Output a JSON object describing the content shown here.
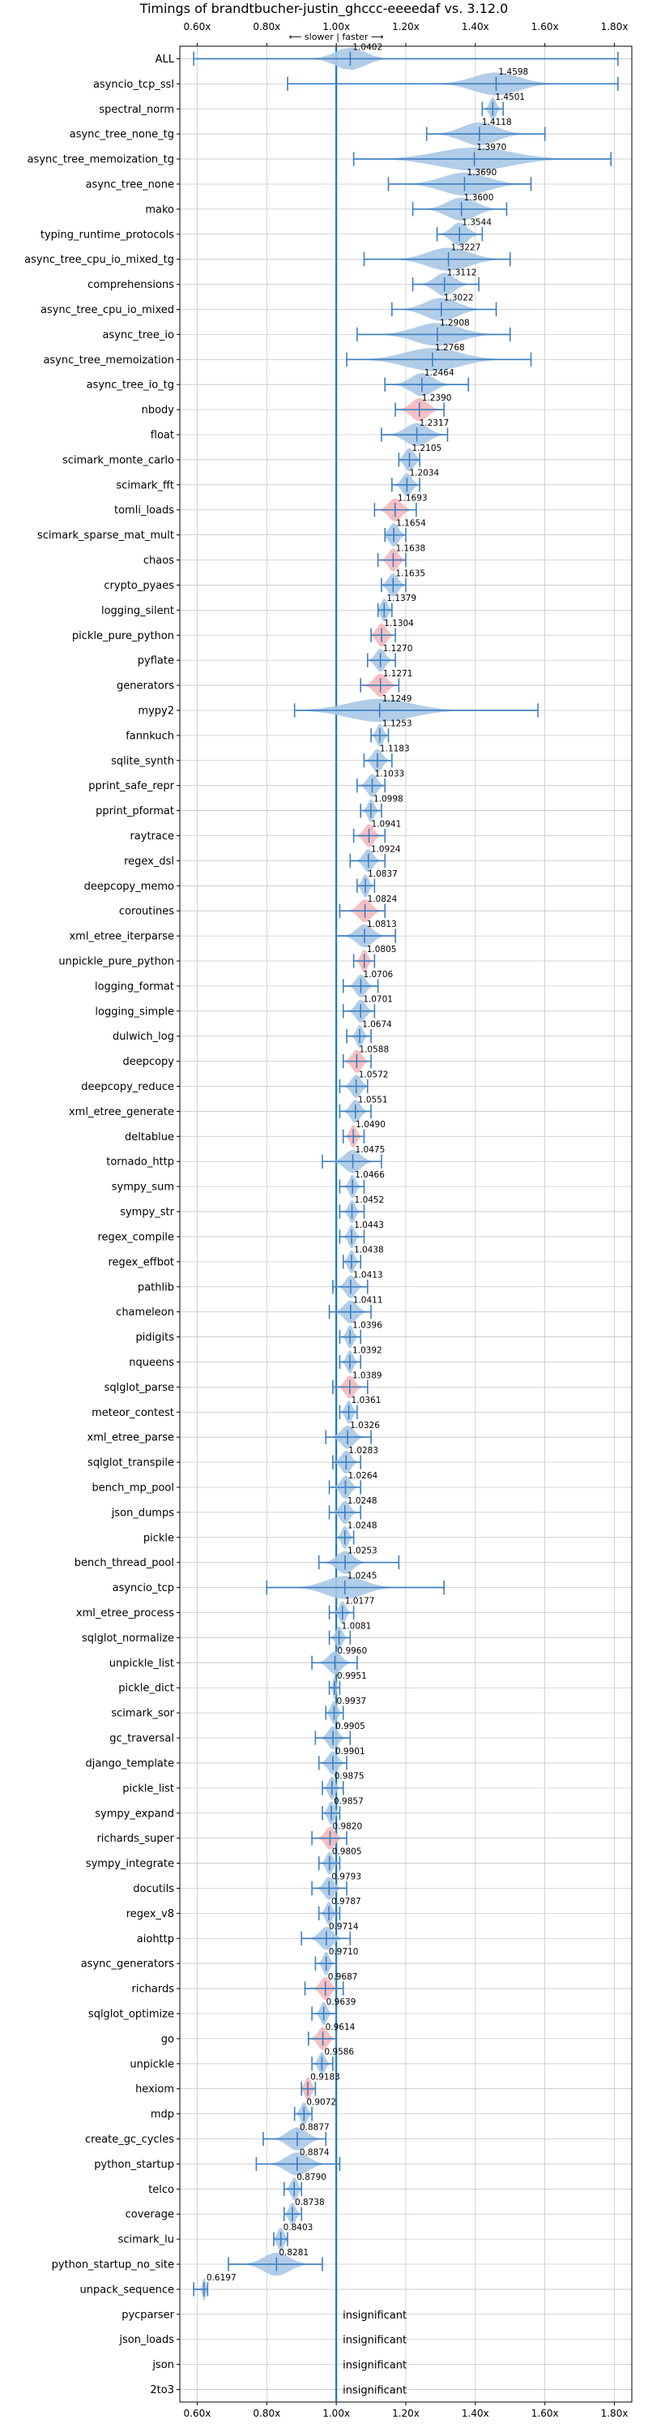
{
  "chart_data": {
    "type": "violin",
    "title": "Timings of brandtbucher-justin_ghccc-eeeedaf vs. 3.12.0",
    "direction_note": "⟵ slower | faster ⟶",
    "xlim": [
      0.55,
      1.85
    ],
    "xticks": [
      "0.60x",
      "0.80x",
      "1.00x",
      "1.20x",
      "1.40x",
      "1.60x",
      "1.80x"
    ],
    "xtick_values": [
      0.6,
      0.8,
      1.0,
      1.2,
      1.4,
      1.6,
      1.8
    ],
    "reference_line": 1.0,
    "grid": true,
    "insignificant_label": "insignificant",
    "colors": {
      "violin": "#a9c8e6",
      "violin_highlight": "#f4b8bd",
      "whisker": "#3d7fc0",
      "reference": "#1f77b4",
      "grid": "#c8c8c8"
    },
    "benchmarks": [
      {
        "name": "ALL",
        "value": 1.0402,
        "min": 0.59,
        "max": 1.81,
        "spread": 0.09,
        "color": "blue"
      },
      {
        "name": "asyncio_tcp_ssl",
        "value": 1.4598,
        "min": 0.86,
        "max": 1.81,
        "spread": 0.14,
        "color": "blue"
      },
      {
        "name": "spectral_norm",
        "value": 1.4501,
        "min": 1.42,
        "max": 1.48,
        "spread": 0.02,
        "color": "blue"
      },
      {
        "name": "async_tree_none_tg",
        "value": 1.4118,
        "min": 1.26,
        "max": 1.6,
        "spread": 0.11,
        "color": "blue"
      },
      {
        "name": "async_tree_memoization_tg",
        "value": 1.397,
        "min": 1.05,
        "max": 1.79,
        "spread": 0.23,
        "color": "blue"
      },
      {
        "name": "async_tree_none",
        "value": 1.369,
        "min": 1.15,
        "max": 1.56,
        "spread": 0.14,
        "color": "blue"
      },
      {
        "name": "mako",
        "value": 1.36,
        "min": 1.22,
        "max": 1.49,
        "spread": 0.09,
        "color": "blue"
      },
      {
        "name": "typing_runtime_protocols",
        "value": 1.3544,
        "min": 1.29,
        "max": 1.42,
        "spread": 0.05,
        "color": "blue"
      },
      {
        "name": "async_tree_cpu_io_mixed_tg",
        "value": 1.3227,
        "min": 1.08,
        "max": 1.5,
        "spread": 0.13,
        "color": "blue"
      },
      {
        "name": "comprehensions",
        "value": 1.3112,
        "min": 1.22,
        "max": 1.41,
        "spread": 0.06,
        "color": "blue"
      },
      {
        "name": "async_tree_cpu_io_mixed",
        "value": 1.3022,
        "min": 1.16,
        "max": 1.46,
        "spread": 0.1,
        "color": "blue"
      },
      {
        "name": "async_tree_io",
        "value": 1.2908,
        "min": 1.06,
        "max": 1.5,
        "spread": 0.14,
        "color": "blue"
      },
      {
        "name": "async_tree_memoization",
        "value": 1.2768,
        "min": 1.03,
        "max": 1.56,
        "spread": 0.17,
        "color": "blue"
      },
      {
        "name": "async_tree_io_tg",
        "value": 1.2464,
        "min": 1.14,
        "max": 1.38,
        "spread": 0.07,
        "color": "blue"
      },
      {
        "name": "nbody",
        "value": 1.239,
        "min": 1.17,
        "max": 1.31,
        "spread": 0.05,
        "color": "red"
      },
      {
        "name": "float",
        "value": 1.2317,
        "min": 1.13,
        "max": 1.32,
        "spread": 0.07,
        "color": "blue"
      },
      {
        "name": "scimark_monte_carlo",
        "value": 1.2105,
        "min": 1.18,
        "max": 1.24,
        "spread": 0.03,
        "color": "blue"
      },
      {
        "name": "scimark_fft",
        "value": 1.2034,
        "min": 1.16,
        "max": 1.24,
        "spread": 0.03,
        "color": "blue"
      },
      {
        "name": "tomli_loads",
        "value": 1.1693,
        "min": 1.11,
        "max": 1.23,
        "spread": 0.04,
        "color": "red"
      },
      {
        "name": "scimark_sparse_mat_mult",
        "value": 1.1654,
        "min": 1.14,
        "max": 1.2,
        "spread": 0.03,
        "color": "blue"
      },
      {
        "name": "chaos",
        "value": 1.1638,
        "min": 1.12,
        "max": 1.2,
        "spread": 0.03,
        "color": "red"
      },
      {
        "name": "crypto_pyaes",
        "value": 1.1635,
        "min": 1.13,
        "max": 1.2,
        "spread": 0.03,
        "color": "blue"
      },
      {
        "name": "logging_silent",
        "value": 1.1379,
        "min": 1.12,
        "max": 1.16,
        "spread": 0.02,
        "color": "blue"
      },
      {
        "name": "pickle_pure_python",
        "value": 1.1304,
        "min": 1.1,
        "max": 1.17,
        "spread": 0.03,
        "color": "red"
      },
      {
        "name": "pyflate",
        "value": 1.127,
        "min": 1.09,
        "max": 1.17,
        "spread": 0.03,
        "color": "blue"
      },
      {
        "name": "generators",
        "value": 1.1271,
        "min": 1.07,
        "max": 1.18,
        "spread": 0.04,
        "color": "red"
      },
      {
        "name": "mypy2",
        "value": 1.1249,
        "min": 0.88,
        "max": 1.58,
        "spread": 0.2,
        "color": "blue"
      },
      {
        "name": "fannkuch",
        "value": 1.1253,
        "min": 1.1,
        "max": 1.15,
        "spread": 0.02,
        "color": "blue"
      },
      {
        "name": "sqlite_synth",
        "value": 1.1183,
        "min": 1.08,
        "max": 1.16,
        "spread": 0.03,
        "color": "blue"
      },
      {
        "name": "pprint_safe_repr",
        "value": 1.1033,
        "min": 1.06,
        "max": 1.14,
        "spread": 0.03,
        "color": "blue"
      },
      {
        "name": "pprint_pformat",
        "value": 1.0998,
        "min": 1.07,
        "max": 1.13,
        "spread": 0.02,
        "color": "blue"
      },
      {
        "name": "raytrace",
        "value": 1.0941,
        "min": 1.05,
        "max": 1.14,
        "spread": 0.03,
        "color": "red"
      },
      {
        "name": "regex_dsl",
        "value": 1.0924,
        "min": 1.04,
        "max": 1.14,
        "spread": 0.03,
        "color": "blue"
      },
      {
        "name": "deepcopy_memo",
        "value": 1.0837,
        "min": 1.06,
        "max": 1.11,
        "spread": 0.02,
        "color": "blue"
      },
      {
        "name": "coroutines",
        "value": 1.0824,
        "min": 1.01,
        "max": 1.14,
        "spread": 0.04,
        "color": "red"
      },
      {
        "name": "xml_etree_iterparse",
        "value": 1.0813,
        "min": 1.0,
        "max": 1.17,
        "spread": 0.05,
        "color": "blue"
      },
      {
        "name": "unpickle_pure_python",
        "value": 1.0805,
        "min": 1.05,
        "max": 1.11,
        "spread": 0.02,
        "color": "red"
      },
      {
        "name": "logging_format",
        "value": 1.0706,
        "min": 1.02,
        "max": 1.12,
        "spread": 0.03,
        "color": "blue"
      },
      {
        "name": "logging_simple",
        "value": 1.0701,
        "min": 1.02,
        "max": 1.11,
        "spread": 0.03,
        "color": "blue"
      },
      {
        "name": "dulwich_log",
        "value": 1.0674,
        "min": 1.03,
        "max": 1.1,
        "spread": 0.02,
        "color": "blue"
      },
      {
        "name": "deepcopy",
        "value": 1.0588,
        "min": 1.02,
        "max": 1.1,
        "spread": 0.03,
        "color": "red"
      },
      {
        "name": "deepcopy_reduce",
        "value": 1.0572,
        "min": 1.01,
        "max": 1.09,
        "spread": 0.03,
        "color": "blue"
      },
      {
        "name": "xml_etree_generate",
        "value": 1.0551,
        "min": 1.01,
        "max": 1.1,
        "spread": 0.03,
        "color": "blue"
      },
      {
        "name": "deltablue",
        "value": 1.049,
        "min": 1.02,
        "max": 1.08,
        "spread": 0.02,
        "color": "red"
      },
      {
        "name": "tornado_http",
        "value": 1.0475,
        "min": 0.96,
        "max": 1.13,
        "spread": 0.05,
        "color": "blue"
      },
      {
        "name": "sympy_sum",
        "value": 1.0466,
        "min": 1.01,
        "max": 1.08,
        "spread": 0.02,
        "color": "blue"
      },
      {
        "name": "sympy_str",
        "value": 1.0452,
        "min": 1.01,
        "max": 1.08,
        "spread": 0.02,
        "color": "blue"
      },
      {
        "name": "regex_compile",
        "value": 1.0443,
        "min": 1.01,
        "max": 1.08,
        "spread": 0.02,
        "color": "blue"
      },
      {
        "name": "regex_effbot",
        "value": 1.0438,
        "min": 1.02,
        "max": 1.07,
        "spread": 0.02,
        "color": "blue"
      },
      {
        "name": "pathlib",
        "value": 1.0413,
        "min": 0.99,
        "max": 1.09,
        "spread": 0.03,
        "color": "blue"
      },
      {
        "name": "chameleon",
        "value": 1.0411,
        "min": 0.98,
        "max": 1.1,
        "spread": 0.04,
        "color": "blue"
      },
      {
        "name": "pidigits",
        "value": 1.0396,
        "min": 1.01,
        "max": 1.07,
        "spread": 0.02,
        "color": "blue"
      },
      {
        "name": "nqueens",
        "value": 1.0392,
        "min": 1.01,
        "max": 1.07,
        "spread": 0.02,
        "color": "blue"
      },
      {
        "name": "sqlglot_parse",
        "value": 1.0389,
        "min": 0.99,
        "max": 1.09,
        "spread": 0.03,
        "color": "red"
      },
      {
        "name": "meteor_contest",
        "value": 1.0361,
        "min": 1.01,
        "max": 1.06,
        "spread": 0.02,
        "color": "blue"
      },
      {
        "name": "xml_etree_parse",
        "value": 1.0326,
        "min": 0.97,
        "max": 1.1,
        "spread": 0.04,
        "color": "blue"
      },
      {
        "name": "sqlglot_transpile",
        "value": 1.0283,
        "min": 0.99,
        "max": 1.07,
        "spread": 0.03,
        "color": "blue"
      },
      {
        "name": "bench_mp_pool",
        "value": 1.0264,
        "min": 0.98,
        "max": 1.07,
        "spread": 0.03,
        "color": "blue"
      },
      {
        "name": "json_dumps",
        "value": 1.0248,
        "min": 0.98,
        "max": 1.07,
        "spread": 0.03,
        "color": "blue"
      },
      {
        "name": "pickle",
        "value": 1.0248,
        "min": 1.0,
        "max": 1.05,
        "spread": 0.02,
        "color": "blue"
      },
      {
        "name": "bench_thread_pool",
        "value": 1.0253,
        "min": 0.95,
        "max": 1.18,
        "spread": 0.05,
        "color": "blue"
      },
      {
        "name": "asyncio_tcp",
        "value": 1.0245,
        "min": 0.8,
        "max": 1.31,
        "spread": 0.12,
        "color": "blue"
      },
      {
        "name": "xml_etree_process",
        "value": 1.0177,
        "min": 0.98,
        "max": 1.05,
        "spread": 0.02,
        "color": "blue"
      },
      {
        "name": "sqlglot_normalize",
        "value": 1.0081,
        "min": 0.98,
        "max": 1.04,
        "spread": 0.02,
        "color": "blue"
      },
      {
        "name": "unpickle_list",
        "value": 0.996,
        "min": 0.93,
        "max": 1.06,
        "spread": 0.04,
        "color": "blue"
      },
      {
        "name": "pickle_dict",
        "value": 0.9951,
        "min": 0.98,
        "max": 1.01,
        "spread": 0.01,
        "color": "blue"
      },
      {
        "name": "scimark_sor",
        "value": 0.9937,
        "min": 0.97,
        "max": 1.02,
        "spread": 0.02,
        "color": "blue"
      },
      {
        "name": "gc_traversal",
        "value": 0.9905,
        "min": 0.94,
        "max": 1.04,
        "spread": 0.03,
        "color": "blue"
      },
      {
        "name": "django_template",
        "value": 0.9901,
        "min": 0.95,
        "max": 1.03,
        "spread": 0.03,
        "color": "blue"
      },
      {
        "name": "pickle_list",
        "value": 0.9875,
        "min": 0.96,
        "max": 1.02,
        "spread": 0.02,
        "color": "blue"
      },
      {
        "name": "sympy_expand",
        "value": 0.9857,
        "min": 0.96,
        "max": 1.01,
        "spread": 0.02,
        "color": "blue"
      },
      {
        "name": "richards_super",
        "value": 0.982,
        "min": 0.93,
        "max": 1.03,
        "spread": 0.03,
        "color": "red"
      },
      {
        "name": "sympy_integrate",
        "value": 0.9805,
        "min": 0.95,
        "max": 1.01,
        "spread": 0.02,
        "color": "blue"
      },
      {
        "name": "docutils",
        "value": 0.9793,
        "min": 0.93,
        "max": 1.03,
        "spread": 0.03,
        "color": "blue"
      },
      {
        "name": "regex_v8",
        "value": 0.9787,
        "min": 0.95,
        "max": 1.01,
        "spread": 0.02,
        "color": "blue"
      },
      {
        "name": "aiohttp",
        "value": 0.9714,
        "min": 0.9,
        "max": 1.04,
        "spread": 0.04,
        "color": "blue"
      },
      {
        "name": "async_generators",
        "value": 0.971,
        "min": 0.94,
        "max": 1.0,
        "spread": 0.02,
        "color": "blue"
      },
      {
        "name": "richards",
        "value": 0.9687,
        "min": 0.91,
        "max": 1.02,
        "spread": 0.03,
        "color": "red"
      },
      {
        "name": "sqlglot_optimize",
        "value": 0.9639,
        "min": 0.93,
        "max": 1.0,
        "spread": 0.02,
        "color": "blue"
      },
      {
        "name": "go",
        "value": 0.9614,
        "min": 0.92,
        "max": 1.0,
        "spread": 0.03,
        "color": "red"
      },
      {
        "name": "unpickle",
        "value": 0.9586,
        "min": 0.93,
        "max": 0.99,
        "spread": 0.02,
        "color": "blue"
      },
      {
        "name": "hexiom",
        "value": 0.9183,
        "min": 0.9,
        "max": 0.94,
        "spread": 0.02,
        "color": "red"
      },
      {
        "name": "mdp",
        "value": 0.9072,
        "min": 0.88,
        "max": 0.93,
        "spread": 0.02,
        "color": "blue"
      },
      {
        "name": "create_gc_cycles",
        "value": 0.8877,
        "min": 0.79,
        "max": 0.97,
        "spread": 0.06,
        "color": "blue"
      },
      {
        "name": "python_startup",
        "value": 0.8874,
        "min": 0.77,
        "max": 1.01,
        "spread": 0.07,
        "color": "blue"
      },
      {
        "name": "telco",
        "value": 0.879,
        "min": 0.85,
        "max": 0.9,
        "spread": 0.02,
        "color": "blue"
      },
      {
        "name": "coverage",
        "value": 0.8738,
        "min": 0.85,
        "max": 0.9,
        "spread": 0.02,
        "color": "blue"
      },
      {
        "name": "scimark_lu",
        "value": 0.8403,
        "min": 0.82,
        "max": 0.86,
        "spread": 0.02,
        "color": "blue"
      },
      {
        "name": "python_startup_no_site",
        "value": 0.8281,
        "min": 0.69,
        "max": 0.96,
        "spread": 0.08,
        "color": "blue"
      },
      {
        "name": "unpack_sequence",
        "value": 0.6197,
        "min": 0.59,
        "max": 0.63,
        "spread": 0.01,
        "color": "blue"
      },
      {
        "name": "pycparser",
        "value": null,
        "insignificant": true
      },
      {
        "name": "json_loads",
        "value": null,
        "insignificant": true
      },
      {
        "name": "json",
        "value": null,
        "insignificant": true
      },
      {
        "name": "2to3",
        "value": null,
        "insignificant": true
      }
    ]
  }
}
